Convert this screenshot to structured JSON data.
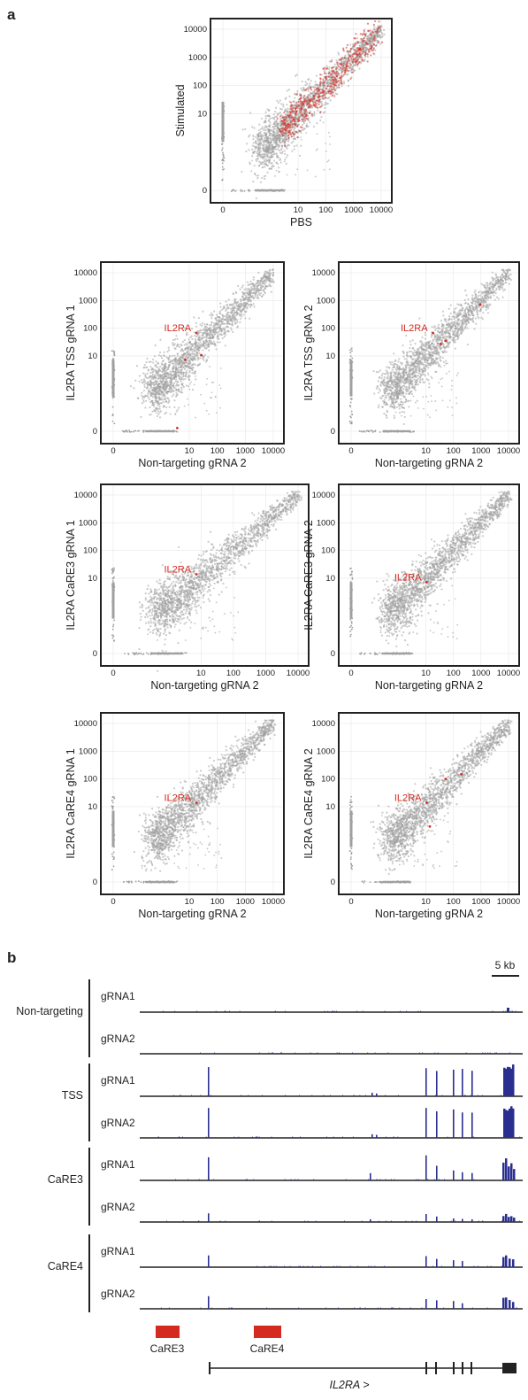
{
  "panel_a": {
    "label": "a",
    "main_plot": {
      "xlabel": "PBS",
      "ylabel": "Stimulated",
      "ticks": [
        "0",
        "10",
        "100",
        "1000",
        "10000"
      ]
    },
    "highlight_label": "IL2RA",
    "plots": [
      {
        "ylabel": "IL2RA TSS gRNA 1",
        "xlabel": "Non-targeting gRNA 2"
      },
      {
        "ylabel": "IL2RA TSS gRNA 2",
        "xlabel": "Non-targeting gRNA 2"
      },
      {
        "ylabel": "IL2RA CaRE3 gRNA 1",
        "xlabel": "Non-targeting gRNA 2"
      },
      {
        "ylabel": "IL2RA CaRE3 gRNA 2",
        "xlabel": "Non-targeting gRNA 2"
      },
      {
        "ylabel": "IL2RA CaRE4 gRNA 1",
        "xlabel": "Non-targeting gRNA 2"
      },
      {
        "ylabel": "IL2RA CaRE4 gRNA 2",
        "xlabel": "Non-targeting gRNA 2"
      }
    ],
    "ticks": [
      "0",
      "10",
      "100",
      "1000",
      "10000"
    ]
  },
  "panel_b": {
    "label": "b",
    "scale_label": "5 kb",
    "groups": [
      {
        "name": "Non-targeting",
        "tracks": [
          "gRNA1",
          "gRNA2"
        ]
      },
      {
        "name": "TSS",
        "tracks": [
          "gRNA1",
          "gRNA2"
        ]
      },
      {
        "name": "CaRE3",
        "tracks": [
          "gRNA1",
          "gRNA2"
        ]
      },
      {
        "name": "CaRE4",
        "tracks": [
          "gRNA1",
          "gRNA2"
        ]
      }
    ],
    "regions": [
      "CaRE3",
      "CaRE4"
    ],
    "gene_label": "IL2RA >"
  },
  "colors": {
    "points": "#a0a0a0",
    "highlight": "#d42a20",
    "track": "#2a2f8f",
    "region": "#d42a20"
  },
  "chart_data": [
    {
      "type": "scatter",
      "title": "",
      "xlabel": "PBS",
      "ylabel": "Stimulated",
      "scale": "log",
      "ticks": [
        0,
        10,
        100,
        1000,
        10000
      ],
      "xlim": [
        0,
        10000
      ],
      "ylim": [
        0,
        10000
      ],
      "series": [
        {
          "name": "",
          "trend": "y≈x",
          "xrange": [
            1,
            10000
          ]
        },
        {
          "name": "",
          "trend": "y≈x (differentially expressed)",
          "xrange": [
            3,
            8000
          ]
        }
      ]
    },
    {
      "type": "scatter",
      "xlabel": "Non-targeting gRNA 2",
      "ylabel": "IL2RA TSS gRNA 1",
      "scale": "log",
      "ticks": [
        0,
        10,
        100,
        1000,
        10000
      ],
      "annotation": "IL2RA",
      "xlim": [
        0,
        10000
      ],
      "ylim": [
        0,
        10000
      ],
      "series": [
        {
          "name": "",
          "trend": "y≈x"
        }
      ]
    },
    {
      "type": "scatter",
      "xlabel": "Non-targeting gRNA 2",
      "ylabel": "IL2RA TSS gRNA 2",
      "scale": "log",
      "ticks": [
        0,
        10,
        100,
        1000,
        10000
      ],
      "annotation": "IL2RA",
      "xlim": [
        0,
        10000
      ],
      "ylim": [
        0,
        10000
      ],
      "series": [
        {
          "name": "",
          "trend": "y≈x"
        }
      ]
    },
    {
      "type": "scatter",
      "xlabel": "Non-targeting gRNA 2",
      "ylabel": "IL2RA CaRE3 gRNA 1",
      "scale": "log",
      "ticks": [
        0,
        10,
        100,
        1000,
        10000
      ],
      "annotation": "IL2RA",
      "xlim": [
        0,
        10000
      ],
      "ylim": [
        0,
        10000
      ],
      "series": [
        {
          "name": "",
          "trend": "y≈x"
        }
      ]
    },
    {
      "type": "scatter",
      "xlabel": "Non-targeting gRNA 2",
      "ylabel": "IL2RA CaRE3 gRNA 2",
      "scale": "log",
      "ticks": [
        0,
        10,
        100,
        1000,
        10000
      ],
      "annotation": "IL2RA",
      "xlim": [
        0,
        10000
      ],
      "ylim": [
        0,
        10000
      ],
      "series": [
        {
          "name": "",
          "trend": "y≈x"
        }
      ]
    },
    {
      "type": "scatter",
      "xlabel": "Non-targeting gRNA 2",
      "ylabel": "IL2RA CaRE4 gRNA 1",
      "scale": "log",
      "ticks": [
        0,
        10,
        100,
        1000,
        10000
      ],
      "annotation": "IL2RA",
      "xlim": [
        0,
        10000
      ],
      "ylim": [
        0,
        10000
      ],
      "series": [
        {
          "name": "",
          "trend": "y≈x"
        }
      ]
    },
    {
      "type": "scatter",
      "xlabel": "Non-targeting gRNA 2",
      "ylabel": "IL2RA CaRE4 gRNA 2",
      "scale": "log",
      "ticks": [
        0,
        10,
        100,
        1000,
        10000
      ],
      "annotation": "IL2RA",
      "xlim": [
        0,
        10000
      ],
      "ylim": [
        0,
        10000
      ],
      "series": [
        {
          "name": "",
          "trend": "y≈x"
        }
      ]
    }
  ]
}
